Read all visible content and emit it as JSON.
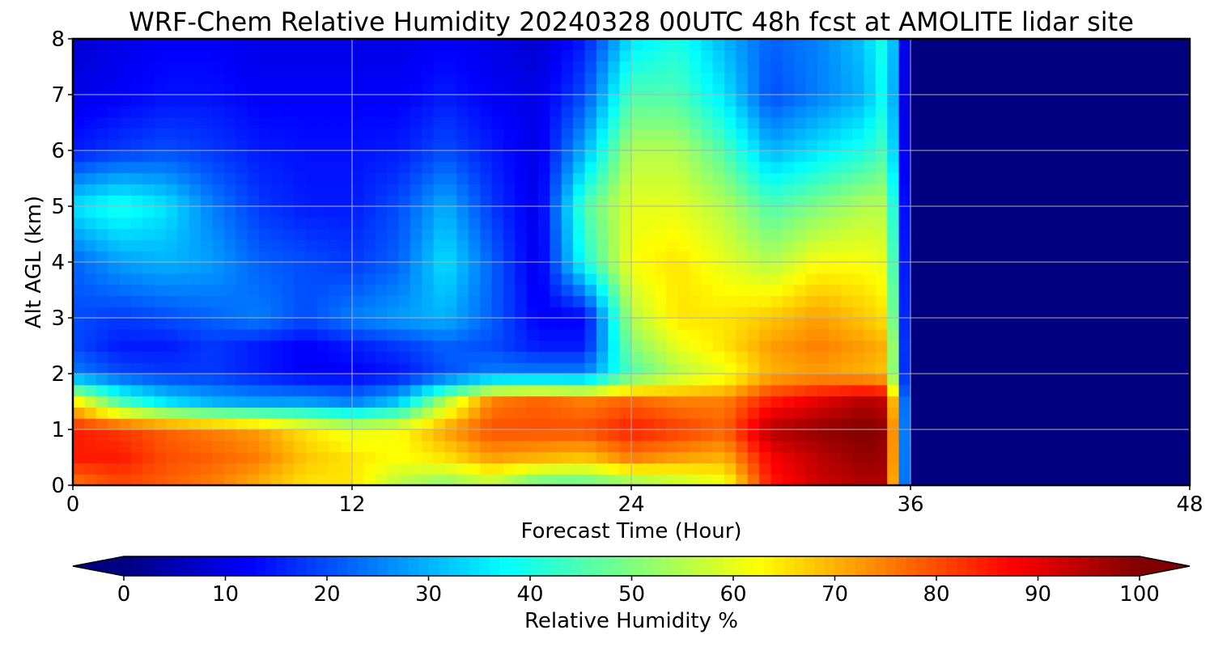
{
  "chart_data": {
    "type": "heatmap",
    "title": "WRF-Chem Relative Humidity 20240328 00UTC 48h fcst at AMOLITE lidar site",
    "xlabel": "Forecast Time (Hour)",
    "ylabel": "Alt AGL (km)",
    "xlim": [
      0,
      48
    ],
    "ylim": [
      0,
      8
    ],
    "xticks": [
      0,
      12,
      24,
      36,
      48
    ],
    "yticks": [
      0,
      1,
      2,
      3,
      4,
      5,
      6,
      7,
      8
    ],
    "grid": true,
    "colormap": "jet",
    "colorbar": {
      "label": "Relative Humidity %",
      "min": 0,
      "max": 100,
      "ticks": [
        0,
        10,
        20,
        30,
        40,
        50,
        60,
        70,
        80,
        90,
        100
      ],
      "extend": "both",
      "placement": "bottom"
    },
    "x": [
      0,
      2,
      4,
      6,
      8,
      10,
      12,
      14,
      16,
      18,
      20,
      22,
      24,
      26,
      28,
      30,
      32,
      34,
      35,
      36
    ],
    "y": [
      0,
      0.5,
      1,
      1.5,
      2,
      2.5,
      3,
      4,
      5,
      6,
      7,
      8
    ],
    "z": [
      [
        75,
        80,
        78,
        75,
        70,
        65,
        65,
        55,
        50,
        55,
        45,
        45,
        50,
        55,
        60,
        85,
        92,
        95,
        95,
        0
      ],
      [
        85,
        85,
        80,
        78,
        75,
        68,
        65,
        62,
        65,
        72,
        70,
        68,
        75,
        72,
        70,
        88,
        94,
        98,
        97,
        0
      ],
      [
        85,
        82,
        78,
        75,
        72,
        65,
        60,
        62,
        72,
        80,
        80,
        80,
        85,
        82,
        78,
        95,
        98,
        100,
        98,
        0
      ],
      [
        65,
        45,
        35,
        30,
        28,
        28,
        25,
        32,
        55,
        75,
        78,
        75,
        78,
        75,
        75,
        85,
        90,
        95,
        93,
        0
      ],
      [
        25,
        20,
        18,
        18,
        15,
        12,
        12,
        14,
        20,
        25,
        25,
        25,
        45,
        55,
        60,
        70,
        72,
        70,
        68,
        0
      ],
      [
        20,
        15,
        15,
        18,
        15,
        12,
        15,
        18,
        22,
        20,
        15,
        15,
        50,
        60,
        65,
        72,
        75,
        72,
        70,
        0
      ],
      [
        20,
        18,
        20,
        22,
        25,
        20,
        25,
        28,
        30,
        22,
        12,
        12,
        55,
        65,
        65,
        68,
        72,
        68,
        65,
        0
      ],
      [
        22,
        28,
        30,
        28,
        22,
        20,
        18,
        22,
        35,
        22,
        10,
        40,
        62,
        65,
        60,
        55,
        62,
        62,
        60,
        0
      ],
      [
        35,
        40,
        35,
        25,
        18,
        15,
        15,
        20,
        30,
        18,
        10,
        45,
        60,
        60,
        55,
        45,
        50,
        55,
        55,
        0
      ],
      [
        15,
        18,
        20,
        18,
        15,
        14,
        14,
        15,
        20,
        15,
        10,
        30,
        55,
        55,
        45,
        30,
        35,
        40,
        45,
        0
      ],
      [
        10,
        12,
        14,
        14,
        12,
        12,
        12,
        12,
        15,
        12,
        10,
        20,
        45,
        45,
        35,
        20,
        25,
        30,
        40,
        0
      ],
      [
        8,
        10,
        12,
        12,
        10,
        10,
        10,
        10,
        12,
        10,
        8,
        15,
        35,
        40,
        30,
        22,
        25,
        32,
        42,
        0
      ]
    ]
  }
}
